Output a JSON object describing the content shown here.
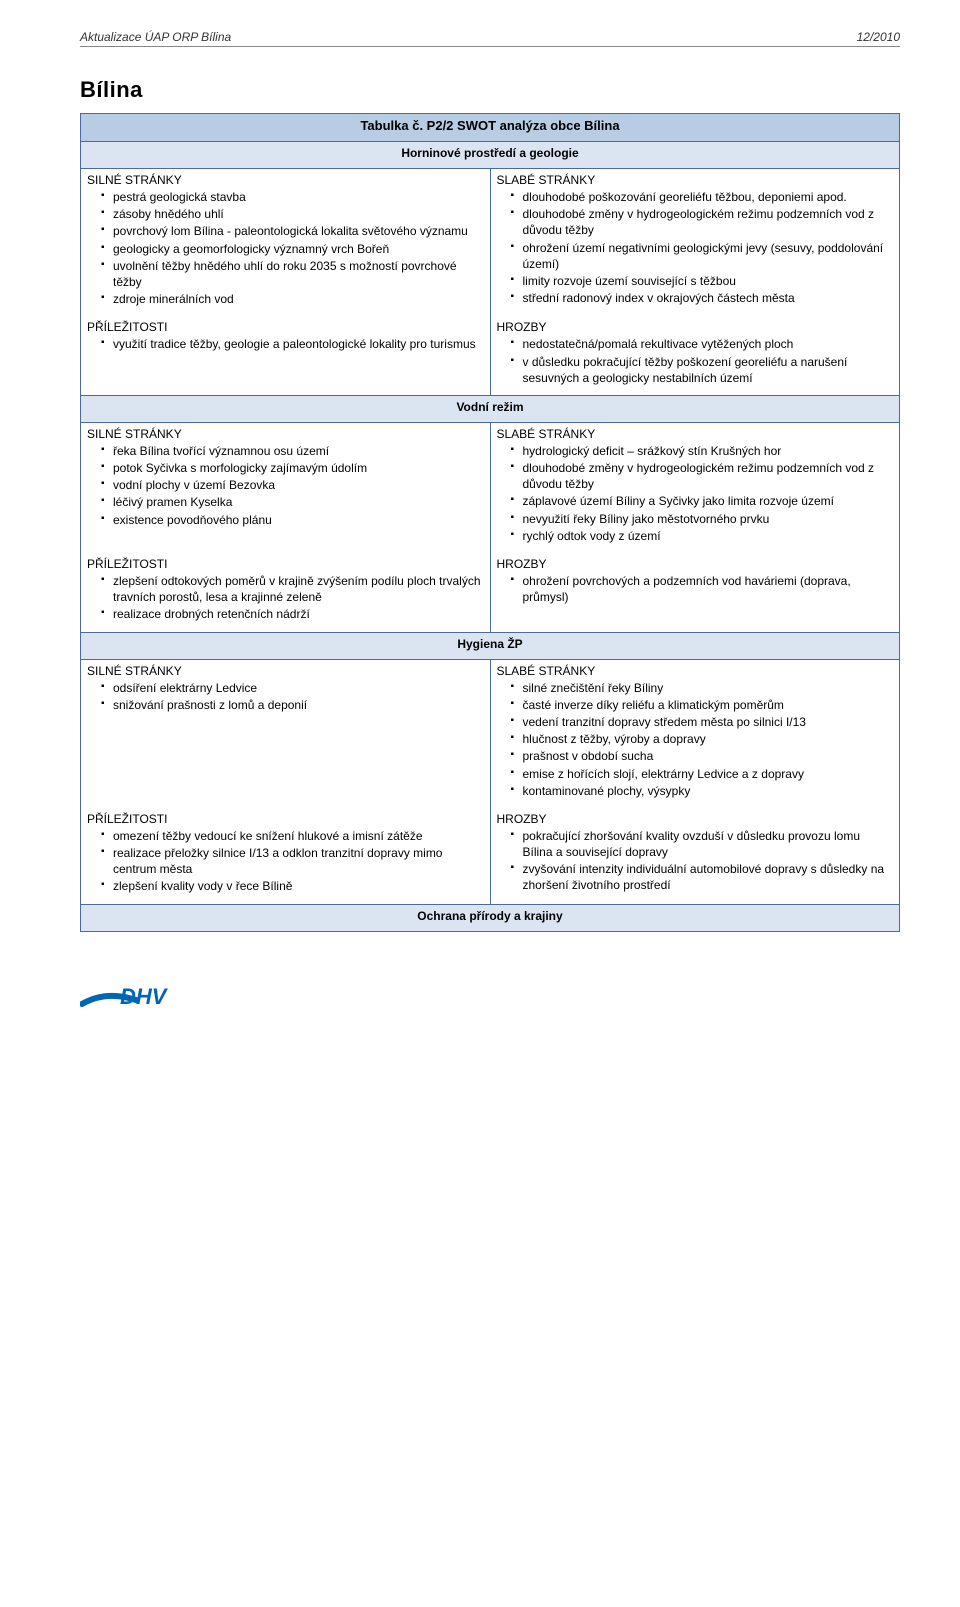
{
  "header": {
    "left": "Aktualizace ÚAP ORP Bílina",
    "right": "12/2010"
  },
  "municipality": "Bílina",
  "table_title": "Tabulka č. P2/2 SWOT analýza obce Bílina",
  "labels": {
    "strengths": "SILNÉ STRÁNKY",
    "weaknesses": "SLABÉ STRÁNKY",
    "opportunities": "PŘÍLEŽITOSTI",
    "threats": "HROZBY"
  },
  "colors": {
    "title_bg": "#b8cce4",
    "section_bg": "#dbe5f1",
    "border": "#4a6aa0",
    "logo_swoosh": "#0066b3",
    "logo_text": "#0066b3"
  },
  "sections": [
    {
      "heading": "Horninové prostředí a geologie",
      "strengths": [
        "pestrá geologická stavba",
        "zásoby hnědého uhlí",
        "povrchový lom Bílina - paleontologická lokalita světového významu",
        "geologicky a geomorfologicky významný vrch Bořeň",
        "uvolnění těžby hnědého uhlí do roku 2035 s možností povrchové těžby",
        "zdroje minerálních vod"
      ],
      "weaknesses": [
        "dlouhodobé poškozování georeliéfu těžbou, deponiemi apod.",
        "dlouhodobé změny v hydrogeologickém režimu podzemních vod z důvodu těžby",
        "ohrožení území negativními geologickými jevy (sesuvy, poddolování území)",
        "limity rozvoje území související s těžbou",
        "střední radonový index v okrajových částech města"
      ],
      "opportunities": [
        "využití tradice těžby, geologie a paleontologické lokality pro turismus"
      ],
      "threats": [
        "nedostatečná/pomalá rekultivace vytěžených ploch",
        "v důsledku pokračující těžby poškození georeliéfu a narušení sesuvných a geologicky nestabilních území"
      ]
    },
    {
      "heading": "Vodní režim",
      "strengths": [
        "řeka Bílina tvořící významnou osu území",
        "potok Syčivka s morfologicky zajímavým údolím",
        "vodní plochy v území Bezovka",
        "léčivý pramen Kyselka",
        "existence povodňového plánu"
      ],
      "weaknesses": [
        "hydrologický deficit – srážkový stín Krušných hor",
        "dlouhodobé změny v hydrogeologickém režimu podzemních vod z důvodu těžby",
        "záplavové území Bíliny a Syčivky jako limita rozvoje území",
        "nevyužití řeky Bíliny jako městotvorného prvku",
        "rychlý odtok vody z území"
      ],
      "opportunities": [
        "zlepšení odtokových poměrů v krajině zvýšením podílu ploch trvalých travních porostů, lesa a krajinné zeleně",
        "realizace drobných retenčních nádrží"
      ],
      "threats": [
        "ohrožení povrchových a podzemních vod haváriemi (doprava, průmysl)"
      ]
    },
    {
      "heading": "Hygiena ŽP",
      "strengths": [
        "odsíření elektrárny Ledvice",
        "snižování prašnosti z lomů a deponií"
      ],
      "weaknesses": [
        "silné znečištění řeky Bíliny",
        "časté inverze díky reliéfu a klimatickým poměrům",
        "vedení tranzitní dopravy středem města po silnici I/13",
        "hlučnost z těžby, výroby a dopravy",
        "prašnost v období sucha",
        "emise z hořících slojí, elektrárny Ledvice a z dopravy",
        "kontaminované plochy, výsypky"
      ],
      "opportunities": [
        "omezení těžby vedoucí ke snížení hlukové a imisní zátěže",
        "realizace přeložky silnice I/13 a odklon tranzitní dopravy mimo centrum města",
        "zlepšení kvality vody v řece Bílině"
      ],
      "threats": [
        "pokračující zhoršování kvality ovzduší v důsledku provozu lomu Bílina a související dopravy",
        "zvyšování intenzity individuální automobilové dopravy s důsledky na zhoršení životního prostředí"
      ]
    },
    {
      "heading": "Ochrana přírody a krajiny"
    }
  ]
}
